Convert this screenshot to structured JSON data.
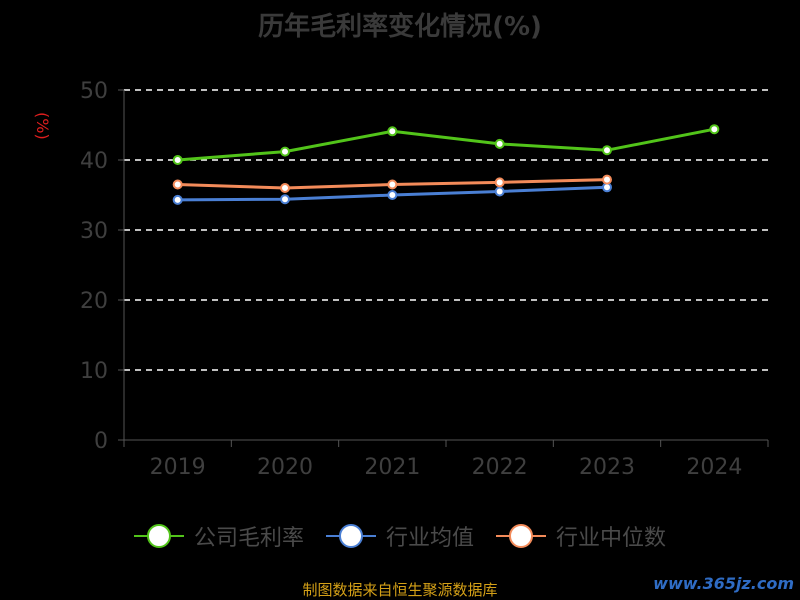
{
  "title": "历年毛利率变化情况(%)",
  "source": "制图数据来自恒生聚源数据库",
  "watermark": "www.365jz.com",
  "chart_data": {
    "type": "line",
    "title": "历年毛利率变化情况(%)",
    "ylabel": "(%)",
    "xlabel": "",
    "categories": [
      "2019",
      "2020",
      "2021",
      "2022",
      "2023",
      "2024"
    ],
    "ylim": [
      0,
      50
    ],
    "yticks": [
      0,
      10,
      20,
      30,
      40,
      50
    ],
    "grid": true,
    "legend_position": "bottom",
    "series": [
      {
        "name": "公司毛利率",
        "color": "#52c41a",
        "values": [
          40.0,
          41.2,
          44.1,
          42.3,
          41.4,
          44.4
        ]
      },
      {
        "name": "行业均值",
        "color": "#4a7fd4",
        "values": [
          34.3,
          34.4,
          35.0,
          35.5,
          36.1,
          null
        ]
      },
      {
        "name": "行业中位数",
        "color": "#f38b5a",
        "values": [
          36.5,
          36.0,
          36.5,
          36.8,
          37.2,
          null
        ]
      }
    ]
  }
}
